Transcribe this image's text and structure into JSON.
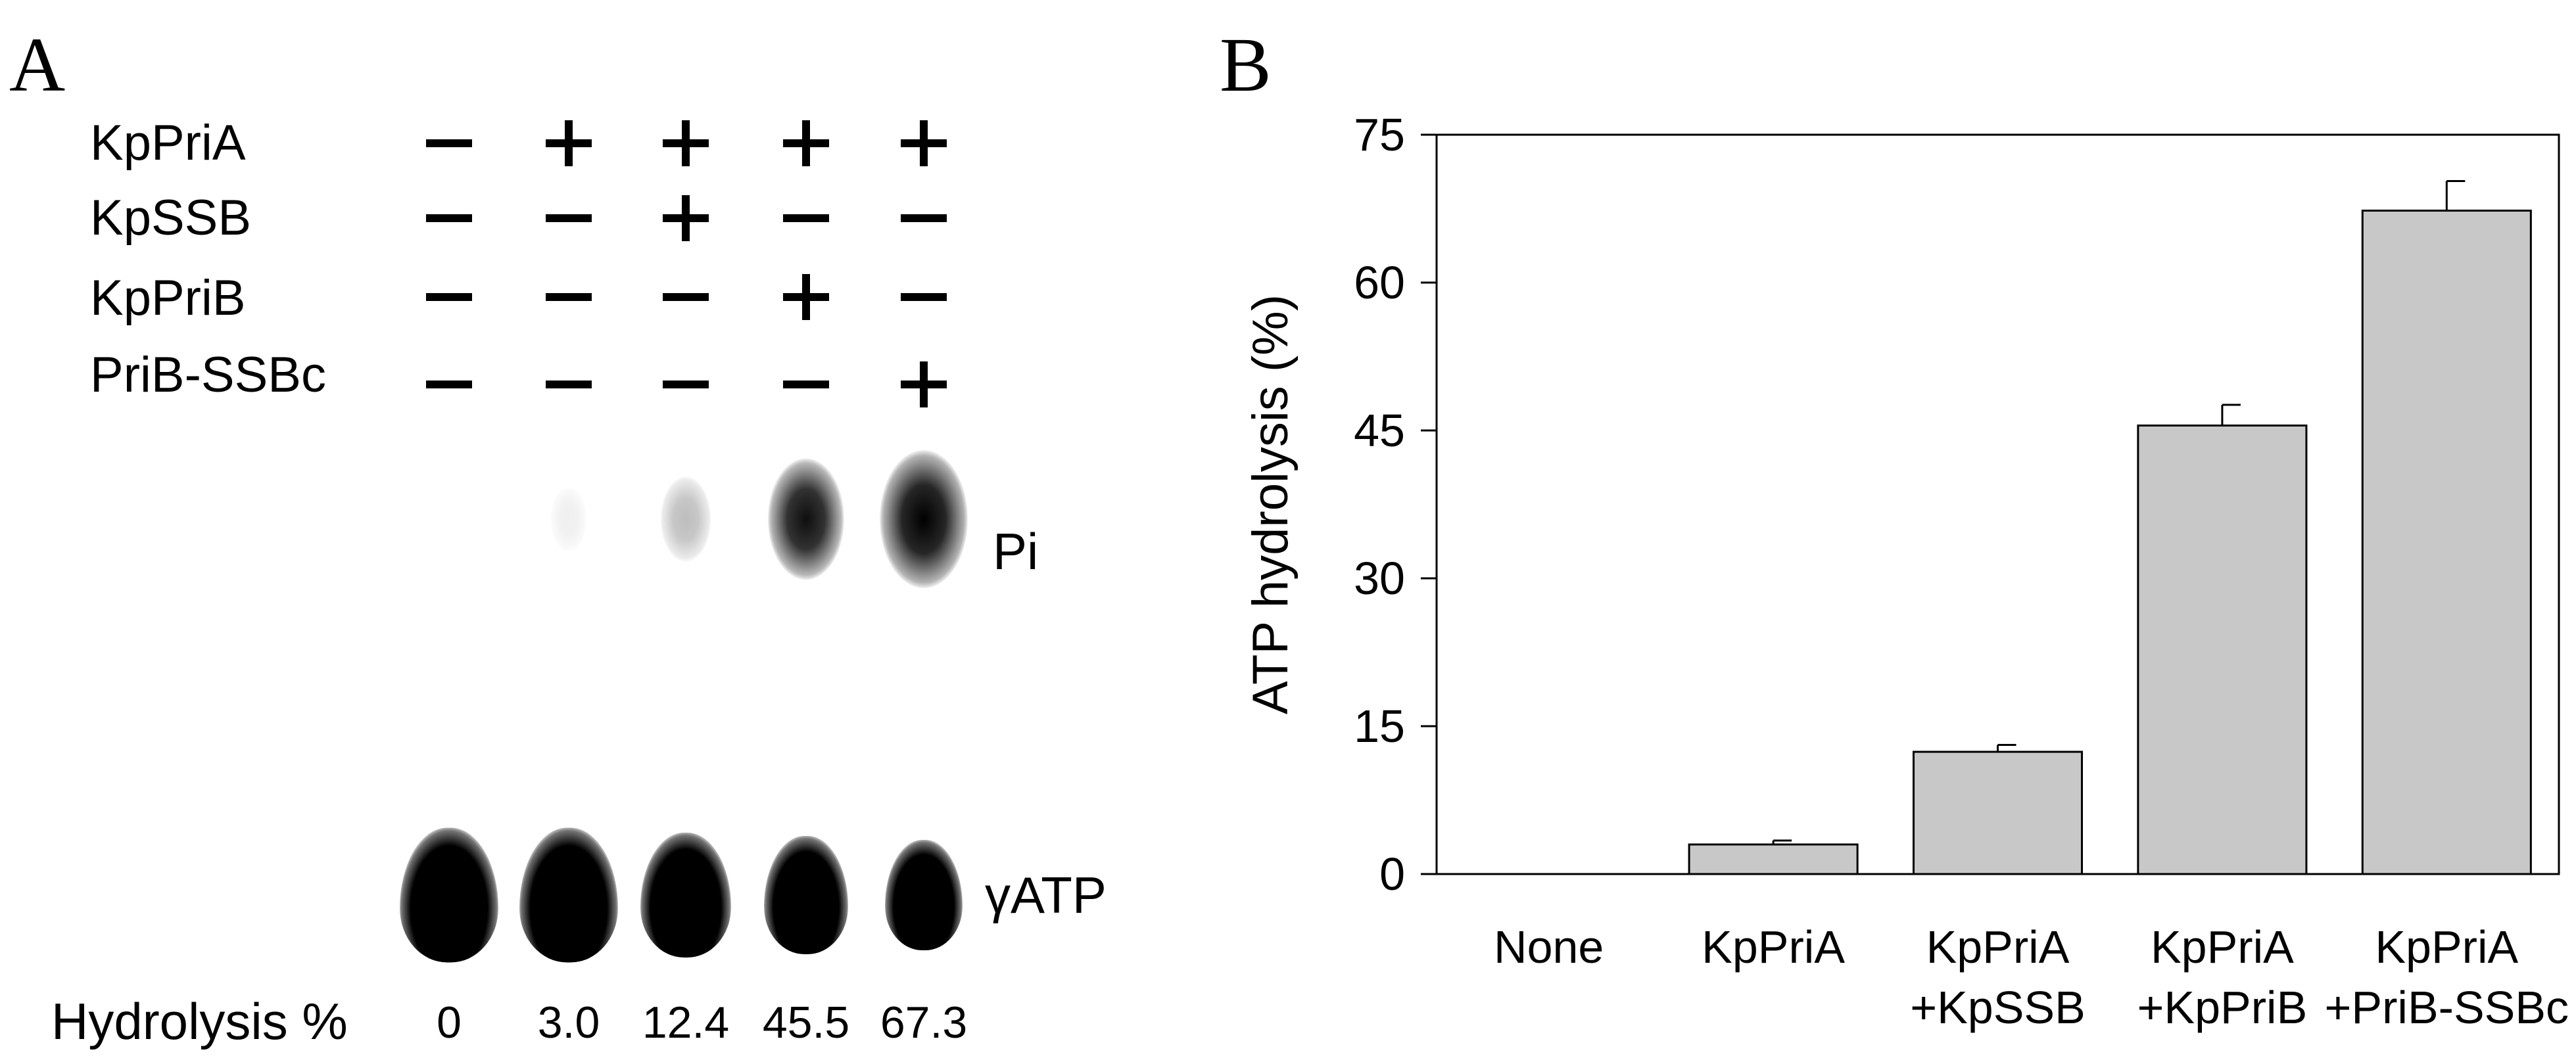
{
  "panel_a": {
    "letter": "A",
    "conditions": [
      {
        "label": "KpPriA",
        "signs": [
          "–",
          "+",
          "+",
          "+",
          "+"
        ]
      },
      {
        "label": "KpSSB",
        "signs": [
          "–",
          "–",
          "+",
          "–",
          "–"
        ]
      },
      {
        "label": "KpPriB",
        "signs": [
          "–",
          "–",
          "–",
          "+",
          "–"
        ]
      },
      {
        "label": "PriB-SSBc",
        "signs": [
          "–",
          "–",
          "–",
          "–",
          "+"
        ]
      }
    ],
    "pi_label": "Pi",
    "atp_label": "γATP",
    "hydrolysis_label": "Hydrolysis %",
    "hydrolysis_values": [
      "0",
      "3.0",
      "12.4",
      "45.5",
      "67.3"
    ],
    "pi_spot_intensity": [
      0,
      0.03,
      0.124,
      0.455,
      0.673
    ]
  },
  "panel_b": {
    "letter": "B"
  },
  "chart_data": {
    "type": "bar",
    "categories": [
      [
        "None"
      ],
      [
        "KpPriA"
      ],
      [
        "KpPriA",
        "+KpSSB"
      ],
      [
        "KpPriA",
        "+KpPriB"
      ],
      [
        "KpPriA",
        "+PriB-SSBc"
      ]
    ],
    "values": [
      0,
      3.0,
      12.4,
      45.5,
      67.3
    ],
    "errors": [
      0,
      0.4,
      0.7,
      2.1,
      3.0
    ],
    "title": "",
    "xlabel": "",
    "ylabel": "ATP hydrolysis (%)",
    "ylim": [
      0,
      75
    ],
    "yticks": [
      0,
      15,
      30,
      45,
      60,
      75
    ],
    "grid": false,
    "bar_color": "#c8c8c8",
    "edge_color": "#000000"
  }
}
